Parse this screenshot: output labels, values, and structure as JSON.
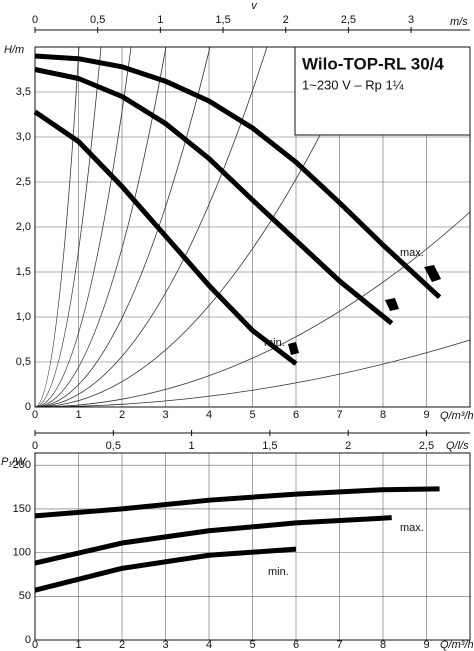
{
  "chart_data": [
    {
      "type": "line",
      "title": "Wilo-TOP-RL 30/4",
      "subtitle": "1~230 V – Rp 1¼",
      "x_label": "Q/m³/h",
      "y_label": "H/m",
      "x2_label": "v",
      "x2_unit": "m/s",
      "xlim": [
        0,
        10
      ],
      "xticks": [
        0,
        1,
        2,
        3,
        4,
        5,
        6,
        7,
        8,
        9
      ],
      "x2lim": [
        0,
        3.47
      ],
      "x2ticks": [
        0,
        {
          "value": 0.5,
          "label": "0,5"
        },
        1,
        {
          "value": 1.5,
          "label": "1,5"
        },
        2,
        {
          "value": 2.5,
          "label": "2,5"
        },
        3
      ],
      "ylim": [
        0,
        4
      ],
      "yticks": [
        0,
        {
          "value": 0.5,
          "label": "0,5"
        },
        {
          "value": 1,
          "label": "1,0"
        },
        {
          "value": 1.5,
          "label": "1,5"
        },
        {
          "value": 2,
          "label": "2,0"
        },
        {
          "value": 2.5,
          "label": "2,5"
        },
        {
          "value": 3,
          "label": "3,0"
        },
        {
          "value": 3.5,
          "label": "3,5"
        }
      ],
      "grid": true,
      "series": [
        {
          "name": "max.",
          "color": "#000000",
          "x": [
            0,
            1,
            2,
            3,
            4,
            5,
            6,
            7,
            8,
            9.3
          ],
          "values": [
            3.9,
            3.87,
            3.78,
            3.62,
            3.4,
            3.1,
            2.72,
            2.27,
            1.8,
            1.22
          ]
        },
        {
          "color": "#000000",
          "x": [
            0,
            1,
            2,
            3,
            4,
            5,
            6,
            7,
            8.2
          ],
          "values": [
            3.75,
            3.65,
            3.45,
            3.15,
            2.76,
            2.3,
            1.85,
            1.4,
            0.93
          ]
        },
        {
          "name": "min.",
          "color": "#000000",
          "x": [
            0,
            1,
            2,
            3,
            4,
            5,
            6
          ],
          "values": [
            3.28,
            2.95,
            2.45,
            1.9,
            1.35,
            0.85,
            0.48
          ]
        }
      ]
    },
    {
      "type": "line",
      "x_label": "Q/m³/h",
      "y_label": "P₁/W",
      "x2_label": "Q/l/s",
      "xlim": [
        0,
        10
      ],
      "xticks": [
        0,
        1,
        2,
        3,
        4,
        5,
        6,
        7,
        8,
        9
      ],
      "x2lim": [
        0,
        2.778
      ],
      "x2ticks": [
        0,
        {
          "value": 0.5,
          "label": "0,5"
        },
        1,
        {
          "value": 1.5,
          "label": "1,5"
        },
        2,
        {
          "value": 2.5,
          "label": "2,5"
        }
      ],
      "ylim": [
        0,
        214
      ],
      "yticks": [
        0,
        50,
        100,
        150,
        200
      ],
      "grid": true,
      "series": [
        {
          "name": "max.",
          "color": "#000000",
          "x": [
            0,
            2,
            4,
            6,
            8,
            9.3
          ],
          "values": [
            142,
            150,
            160,
            167,
            172,
            173
          ]
        },
        {
          "color": "#000000",
          "x": [
            0,
            2,
            4,
            6,
            8.2
          ],
          "values": [
            88,
            111,
            125,
            134,
            140
          ]
        },
        {
          "name": "min.",
          "color": "#000000",
          "x": [
            0,
            2,
            4,
            6
          ],
          "values": [
            57,
            82,
            97,
            104
          ]
        }
      ]
    }
  ]
}
